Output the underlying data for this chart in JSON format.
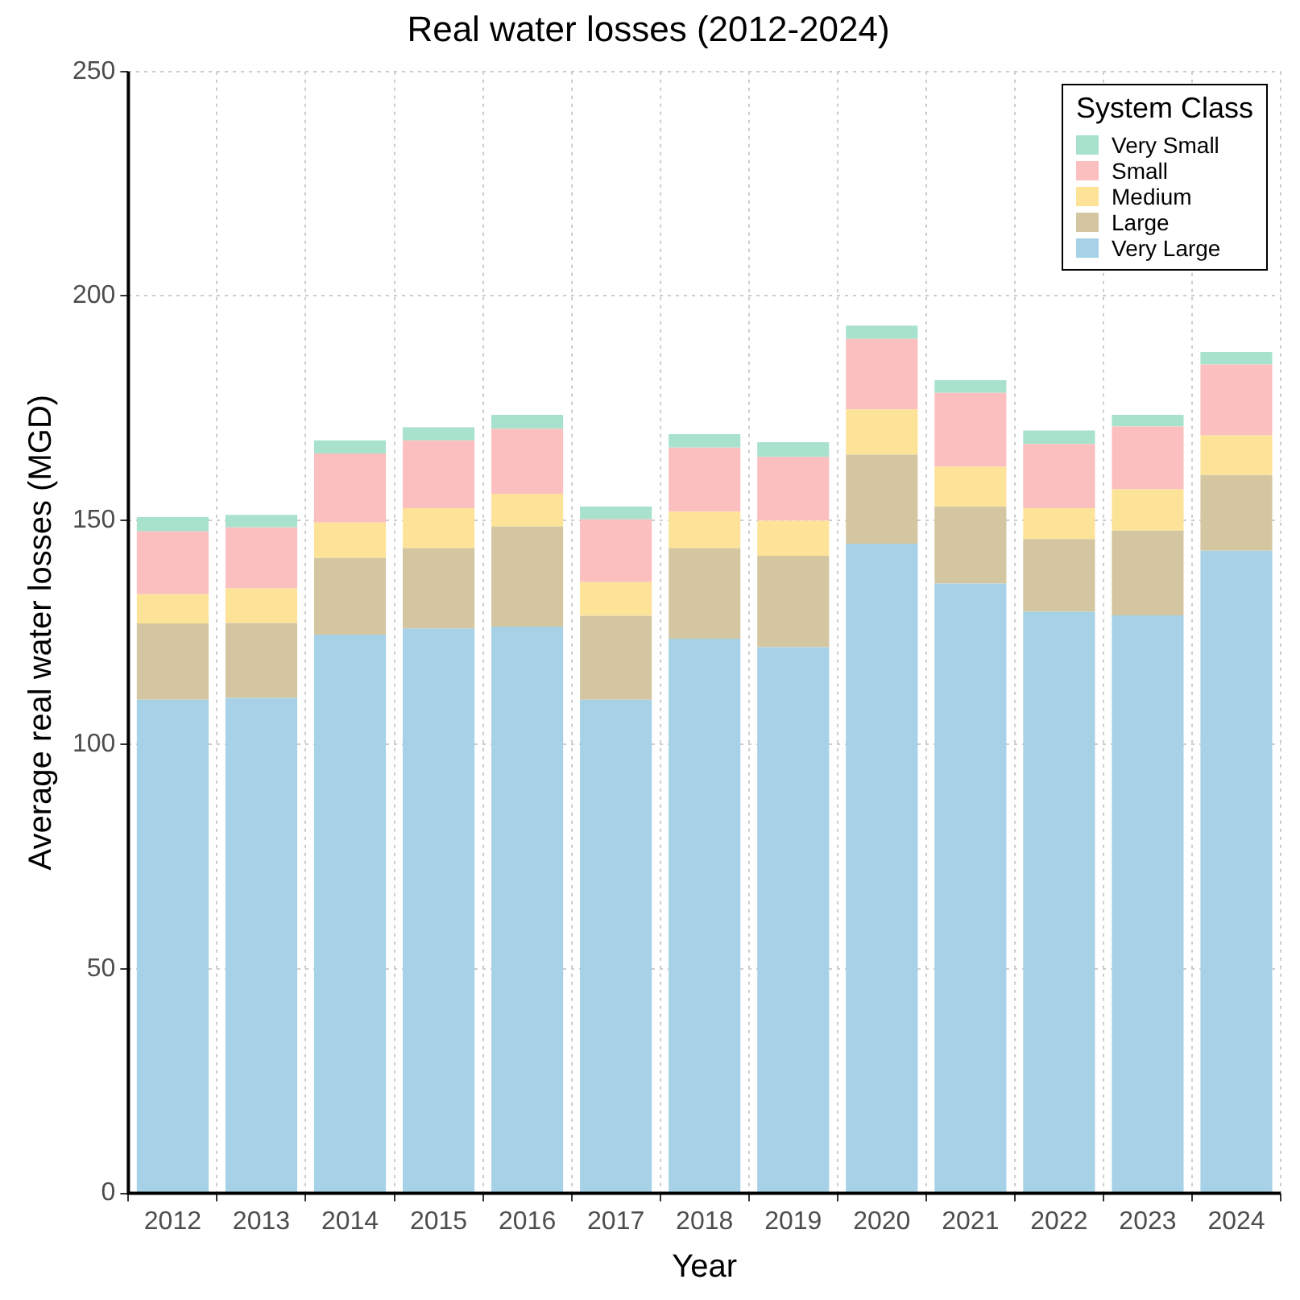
{
  "chart_data": {
    "type": "bar",
    "title": "Real water losses (2012-2024)",
    "xlabel": "Year",
    "ylabel": "Average real water losses (MGD)",
    "legend_title": "System Class",
    "stacked": true,
    "legend": "top right",
    "grid": true,
    "categories": [
      "2012",
      "2013",
      "2014",
      "2015",
      "2016",
      "2017",
      "2018",
      "2019",
      "2020",
      "2021",
      "2022",
      "2023",
      "2024"
    ],
    "ylim": [
      0,
      250
    ],
    "yticks": [
      0,
      50,
      100,
      150,
      200,
      250
    ],
    "series": [
      {
        "name": "Very Large",
        "color": "#a6d1e6",
        "values": [
          110,
          110.4,
          124.5,
          125.9,
          126.3,
          110,
          123.6,
          121.7,
          144.8,
          135.9,
          129.6,
          128.8,
          143.2
        ]
      },
      {
        "name": "Large",
        "color": "#d4c6a0",
        "values": [
          17,
          16.7,
          17.1,
          17.9,
          22.3,
          18.7,
          20.2,
          20.4,
          19.8,
          17.2,
          16.2,
          18.9,
          16.9
        ]
      },
      {
        "name": "Medium",
        "color": "#fde398",
        "values": [
          6.5,
          7.7,
          7.9,
          8.9,
          7.3,
          7.5,
          8.1,
          7.8,
          10.1,
          8.8,
          6.9,
          9.2,
          8.8
        ]
      },
      {
        "name": "Small",
        "color": "#fbbfbf",
        "values": [
          14,
          13.6,
          15.4,
          15.1,
          14.5,
          14,
          14.3,
          14.2,
          15.7,
          16.5,
          14.3,
          14,
          15.8
        ]
      },
      {
        "name": "Very Small",
        "color": "#a8e2cd",
        "values": [
          3.2,
          2.8,
          2.9,
          2.9,
          3.1,
          2.9,
          3,
          3.3,
          3,
          2.8,
          3,
          2.6,
          2.8
        ]
      }
    ]
  }
}
